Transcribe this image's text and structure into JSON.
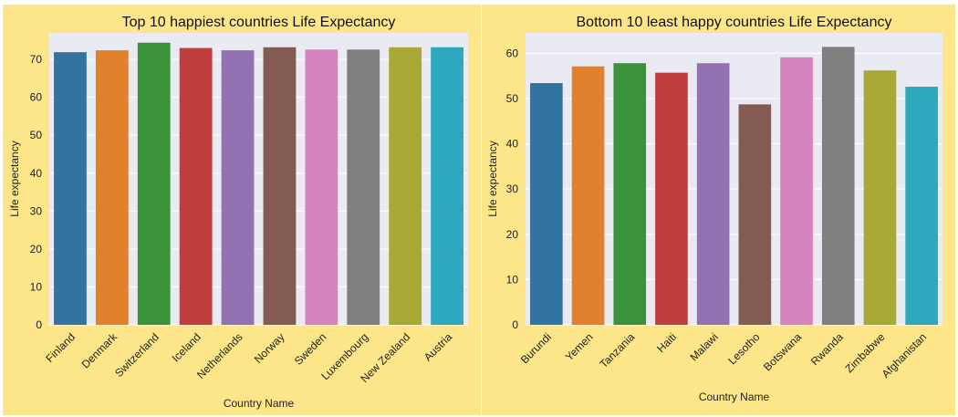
{
  "chart_data": [
    {
      "type": "bar",
      "title": "Top 10 happiest countries Life Expectancy",
      "xlabel": "Country Name",
      "ylabel": "Life expectancy",
      "categories": [
        "Finland",
        "Denmark",
        "Switzerland",
        "Iceland",
        "Netherlands",
        "Norway",
        "Sweden",
        "Luxembourg",
        "New Zealand",
        "Austria"
      ],
      "values": [
        71.9,
        72.4,
        74.4,
        73.0,
        72.4,
        73.2,
        72.6,
        72.6,
        73.2,
        73.2
      ],
      "ylim": [
        0,
        77
      ],
      "yticks": [
        0,
        10,
        20,
        30,
        40,
        50,
        60,
        70
      ],
      "grid": true,
      "colors": [
        "#3274a1",
        "#e1812c",
        "#3a923a",
        "#c03d3e",
        "#9372b2",
        "#845b53",
        "#d684bd",
        "#7f7f7f",
        "#a9aa35",
        "#2ea8bd"
      ]
    },
    {
      "type": "bar",
      "title": "Bottom 10 least happy countries Life Expectancy",
      "xlabel": "Country Name",
      "ylabel": "Life expectancy",
      "categories": [
        "Burundi",
        "Yemen",
        "Tanzania",
        "Haiti",
        "Malawi",
        "Lesotho",
        "Botswana",
        "Rwanda",
        "Zimbabwe",
        "Afghanistan"
      ],
      "values": [
        53.4,
        57.1,
        57.8,
        55.7,
        57.8,
        48.7,
        59.1,
        61.4,
        56.2,
        52.6
      ],
      "ylim": [
        0,
        64.5
      ],
      "yticks": [
        0,
        10,
        20,
        30,
        40,
        50,
        60
      ],
      "grid": true,
      "colors": [
        "#3274a1",
        "#e1812c",
        "#3a923a",
        "#c03d3e",
        "#9372b2",
        "#845b53",
        "#d684bd",
        "#7f7f7f",
        "#a9aa35",
        "#2ea8bd"
      ]
    }
  ],
  "style": {
    "figure_background": "#fde68a",
    "plot_background": "#eaeaf2",
    "grid_color": "#ffffff"
  }
}
